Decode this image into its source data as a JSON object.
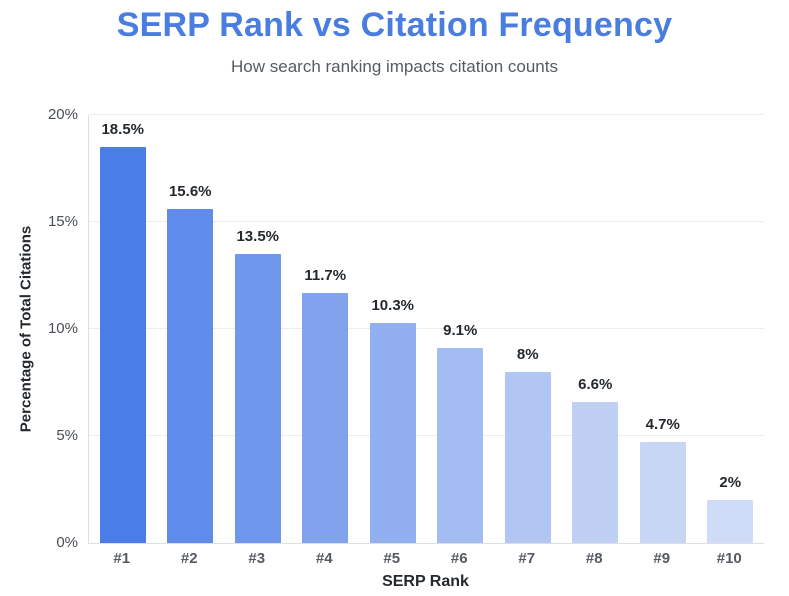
{
  "header": {
    "title": "SERP Rank vs Citation Frequency",
    "subtitle": "How search ranking impacts citation counts"
  },
  "chart_data": {
    "type": "bar",
    "title": "SERP Rank vs Citation Frequency",
    "subtitle": "How search ranking impacts citation counts",
    "categories": [
      "#1",
      "#2",
      "#3",
      "#4",
      "#5",
      "#6",
      "#7",
      "#8",
      "#9",
      "#10"
    ],
    "values": [
      18.5,
      15.6,
      13.5,
      11.7,
      10.3,
      9.1,
      8,
      6.6,
      4.7,
      2
    ],
    "value_labels": [
      "18.5%",
      "15.6%",
      "13.5%",
      "11.7%",
      "10.3%",
      "9.1%",
      "8%",
      "6.6%",
      "4.7%",
      "2%"
    ],
    "xlabel": "SERP Rank",
    "ylabel": "Percentage of Total Citations",
    "ylim": [
      0,
      20
    ],
    "yticks": [
      {
        "value": 0,
        "label": "0%"
      },
      {
        "value": 5,
        "label": "5%"
      },
      {
        "value": 10,
        "label": "10%"
      },
      {
        "value": 15,
        "label": "15%"
      },
      {
        "value": 20,
        "label": "20%"
      }
    ],
    "grid": true,
    "legend": false,
    "bar_colors": [
      "#4a7de8",
      "#5f8bea",
      "#6f97ec",
      "#81a3ee",
      "#92aff0",
      "#a3bcf2",
      "#b2c6f3",
      "#c0cff4",
      "#c8d6f6",
      "#cedcf8"
    ],
    "colors": {
      "title": "#4a7de0",
      "subtitle": "#565b63",
      "data_label": "#24292e",
      "tick_label": "#565b63",
      "axis_title": "#24292e",
      "gridline": "#ededed",
      "axis_line": "#dcdfe3",
      "background": "#ffffff"
    }
  }
}
